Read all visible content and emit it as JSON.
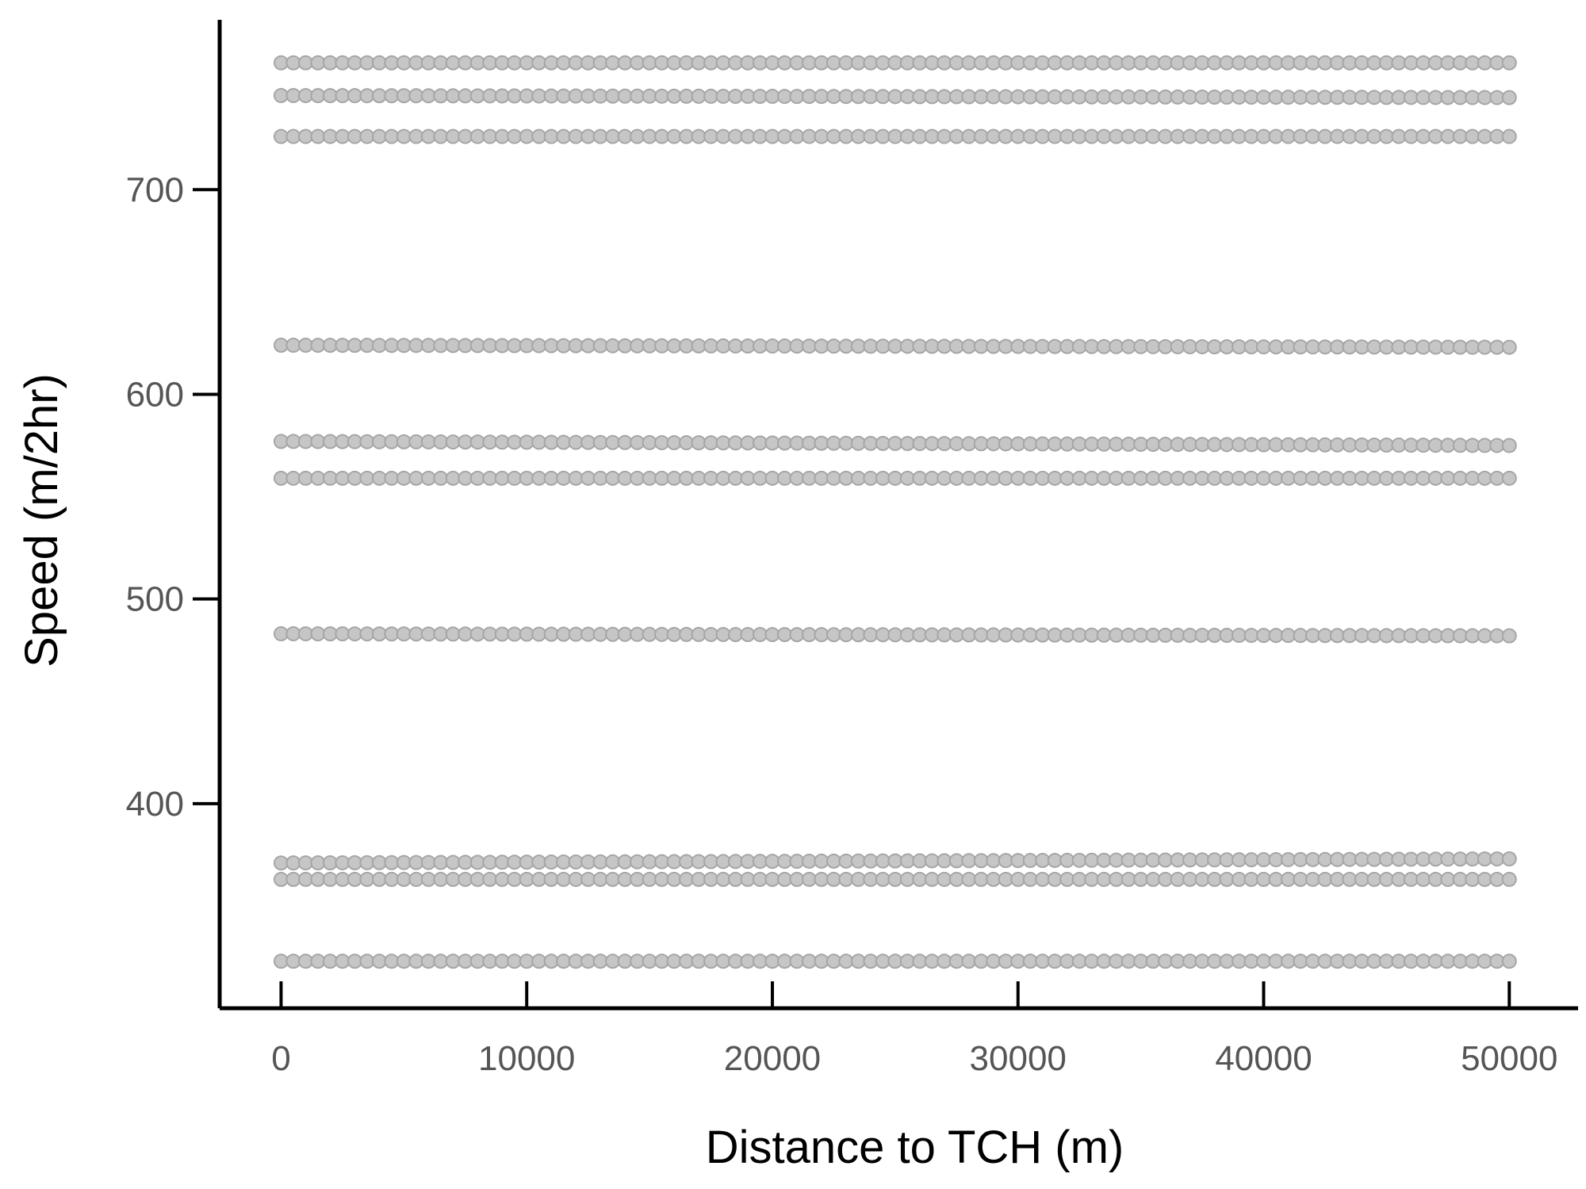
{
  "chart_data": {
    "type": "scatter",
    "xlabel": "Distance to TCH (m)",
    "ylabel": "Speed (m/2hr)",
    "xlim": [
      -2500,
      52800
    ],
    "ylim": [
      300,
      783
    ],
    "x_ticks": [
      0,
      10000,
      20000,
      30000,
      40000,
      50000
    ],
    "y_ticks": [
      400,
      500,
      600,
      700
    ],
    "grid": false,
    "legend": "none",
    "marker_color": "#c6c6c6",
    "marker_edge_color": "#a6a6a6",
    "x_range": {
      "start": 0,
      "end": 50000,
      "step": 500
    },
    "series": [
      {
        "y_start": 762,
        "y_end": 762
      },
      {
        "y_start": 746,
        "y_end": 745
      },
      {
        "y_start": 726,
        "y_end": 726
      },
      {
        "y_start": 624,
        "y_end": 623
      },
      {
        "y_start": 577,
        "y_end": 575
      },
      {
        "y_start": 559,
        "y_end": 559
      },
      {
        "y_start": 483,
        "y_end": 482
      },
      {
        "y_start": 371,
        "y_end": 373
      },
      {
        "y_start": 363,
        "y_end": 363
      },
      {
        "y_start": 323,
        "y_end": 323
      }
    ]
  }
}
